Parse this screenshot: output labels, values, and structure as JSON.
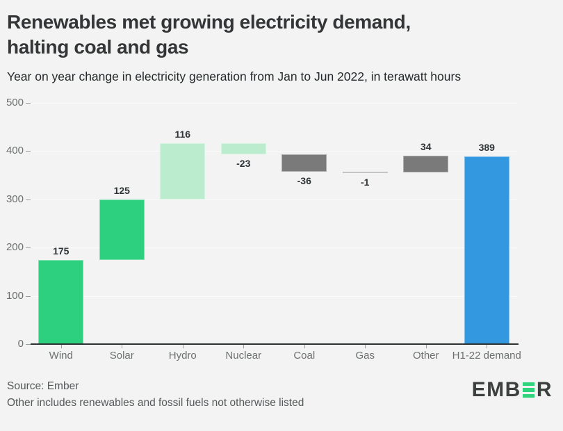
{
  "header": {
    "title": "Renewables met growing electricity demand,\nhalting coal and gas",
    "subtitle": "Year on year change in electricity generation from Jan to Jun 2022, in terawatt hours"
  },
  "footer": {
    "source": "Source: Ember",
    "note": "Other includes renewables and fossil fuels not otherwise listed",
    "source_combined": "Source: Ember\nOther includes renewables and fossil fuels not otherwise listed",
    "logo": {
      "prefix": "EMB",
      "suffix": "R",
      "bar_e_icon": "three-green-bars-e",
      "green": "#2fd37c",
      "text_color": "#3b3f3e"
    }
  },
  "chart_data": {
    "type": "waterfall",
    "title": "Renewables met growing electricity demand, halting coal and gas",
    "subtitle": "Year on year change in electricity generation from Jan to Jun 2022, in terawatt hours",
    "categories": [
      "Wind",
      "Solar",
      "Hydro",
      "Nuclear",
      "Coal",
      "Gas",
      "Other",
      "H1-22 demand"
    ],
    "values": [
      175,
      125,
      116,
      -23,
      -36,
      -1,
      34,
      389
    ],
    "is_total": [
      false,
      false,
      false,
      false,
      false,
      false,
      false,
      true
    ],
    "value_labels": [
      "175",
      "125",
      "116",
      "-23",
      "-36",
      "-1",
      "34",
      "389"
    ],
    "bar_colors": [
      "#2dd07f",
      "#2dd07f",
      "#bcecce",
      "#bcecce",
      "#7a7a7a",
      "#c4c4c4",
      "#7a7a7a",
      "#3398df"
    ],
    "cumulative_ends": [
      175,
      300,
      416,
      393,
      357,
      356,
      390,
      389
    ],
    "y_ticks": [
      0,
      100,
      200,
      300,
      400,
      500
    ],
    "ylim": [
      0,
      500
    ],
    "xlabel": "",
    "ylabel": "",
    "unit": "terawatt hours",
    "grid": true,
    "legend": "none",
    "background": "#f2f3f2",
    "axis_color": "#2d3132"
  }
}
